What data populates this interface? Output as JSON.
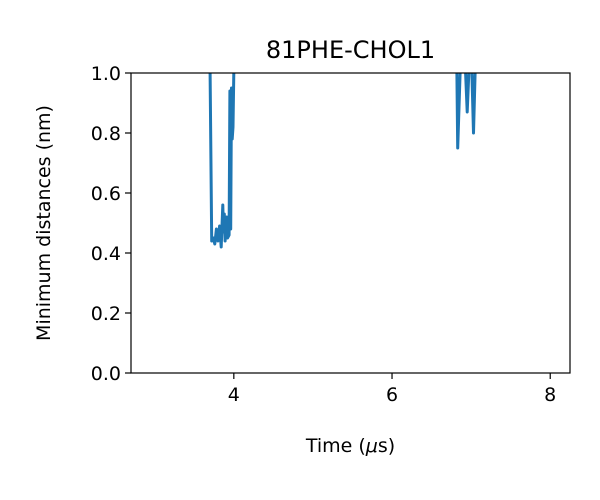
{
  "chart_data": {
    "type": "line",
    "title": "81PHE-CHOL1",
    "xlabel_prefix": "Time (",
    "xlabel_unit_symbol": "μ",
    "xlabel_suffix": "s)",
    "ylabel": "Minimum distances (nm)",
    "xlim": [
      2.7,
      8.25
    ],
    "ylim": [
      0.0,
      1.0
    ],
    "xticks": [
      4,
      6,
      8
    ],
    "yticks": [
      0.0,
      0.2,
      0.4,
      0.6,
      0.8,
      1.0
    ],
    "xtick_labels": [
      "4",
      "6",
      "8"
    ],
    "ytick_labels": [
      "0.0",
      "0.2",
      "0.4",
      "0.6",
      "0.8",
      "1.0"
    ],
    "grid": false,
    "line_color": "#1f77b4",
    "series": [
      {
        "segments": [
          [
            [
              3.7,
              1.0
            ],
            [
              3.72,
              0.44
            ],
            [
              3.74,
              0.45
            ],
            [
              3.76,
              0.43
            ],
            [
              3.78,
              0.48
            ],
            [
              3.8,
              0.44
            ],
            [
              3.82,
              0.49
            ],
            [
              3.84,
              0.42
            ],
            [
              3.86,
              0.56
            ],
            [
              3.87,
              0.47
            ],
            [
              3.88,
              0.53
            ],
            [
              3.89,
              0.44
            ],
            [
              3.91,
              0.52
            ],
            [
              3.92,
              0.45
            ],
            [
              3.94,
              0.46
            ],
            [
              3.95,
              0.94
            ],
            [
              3.96,
              0.48
            ],
            [
              3.97,
              0.95
            ],
            [
              3.98,
              0.78
            ],
            [
              3.99,
              0.82
            ],
            [
              4.0,
              1.0
            ]
          ],
          [
            [
              6.82,
              1.0
            ],
            [
              6.83,
              0.75
            ],
            [
              6.86,
              1.0
            ]
          ],
          [
            [
              6.93,
              1.0
            ],
            [
              6.95,
              0.87
            ],
            [
              6.97,
              1.0
            ]
          ],
          [
            [
              7.01,
              1.0
            ],
            [
              7.03,
              0.8
            ],
            [
              7.05,
              1.0
            ]
          ]
        ]
      }
    ]
  }
}
